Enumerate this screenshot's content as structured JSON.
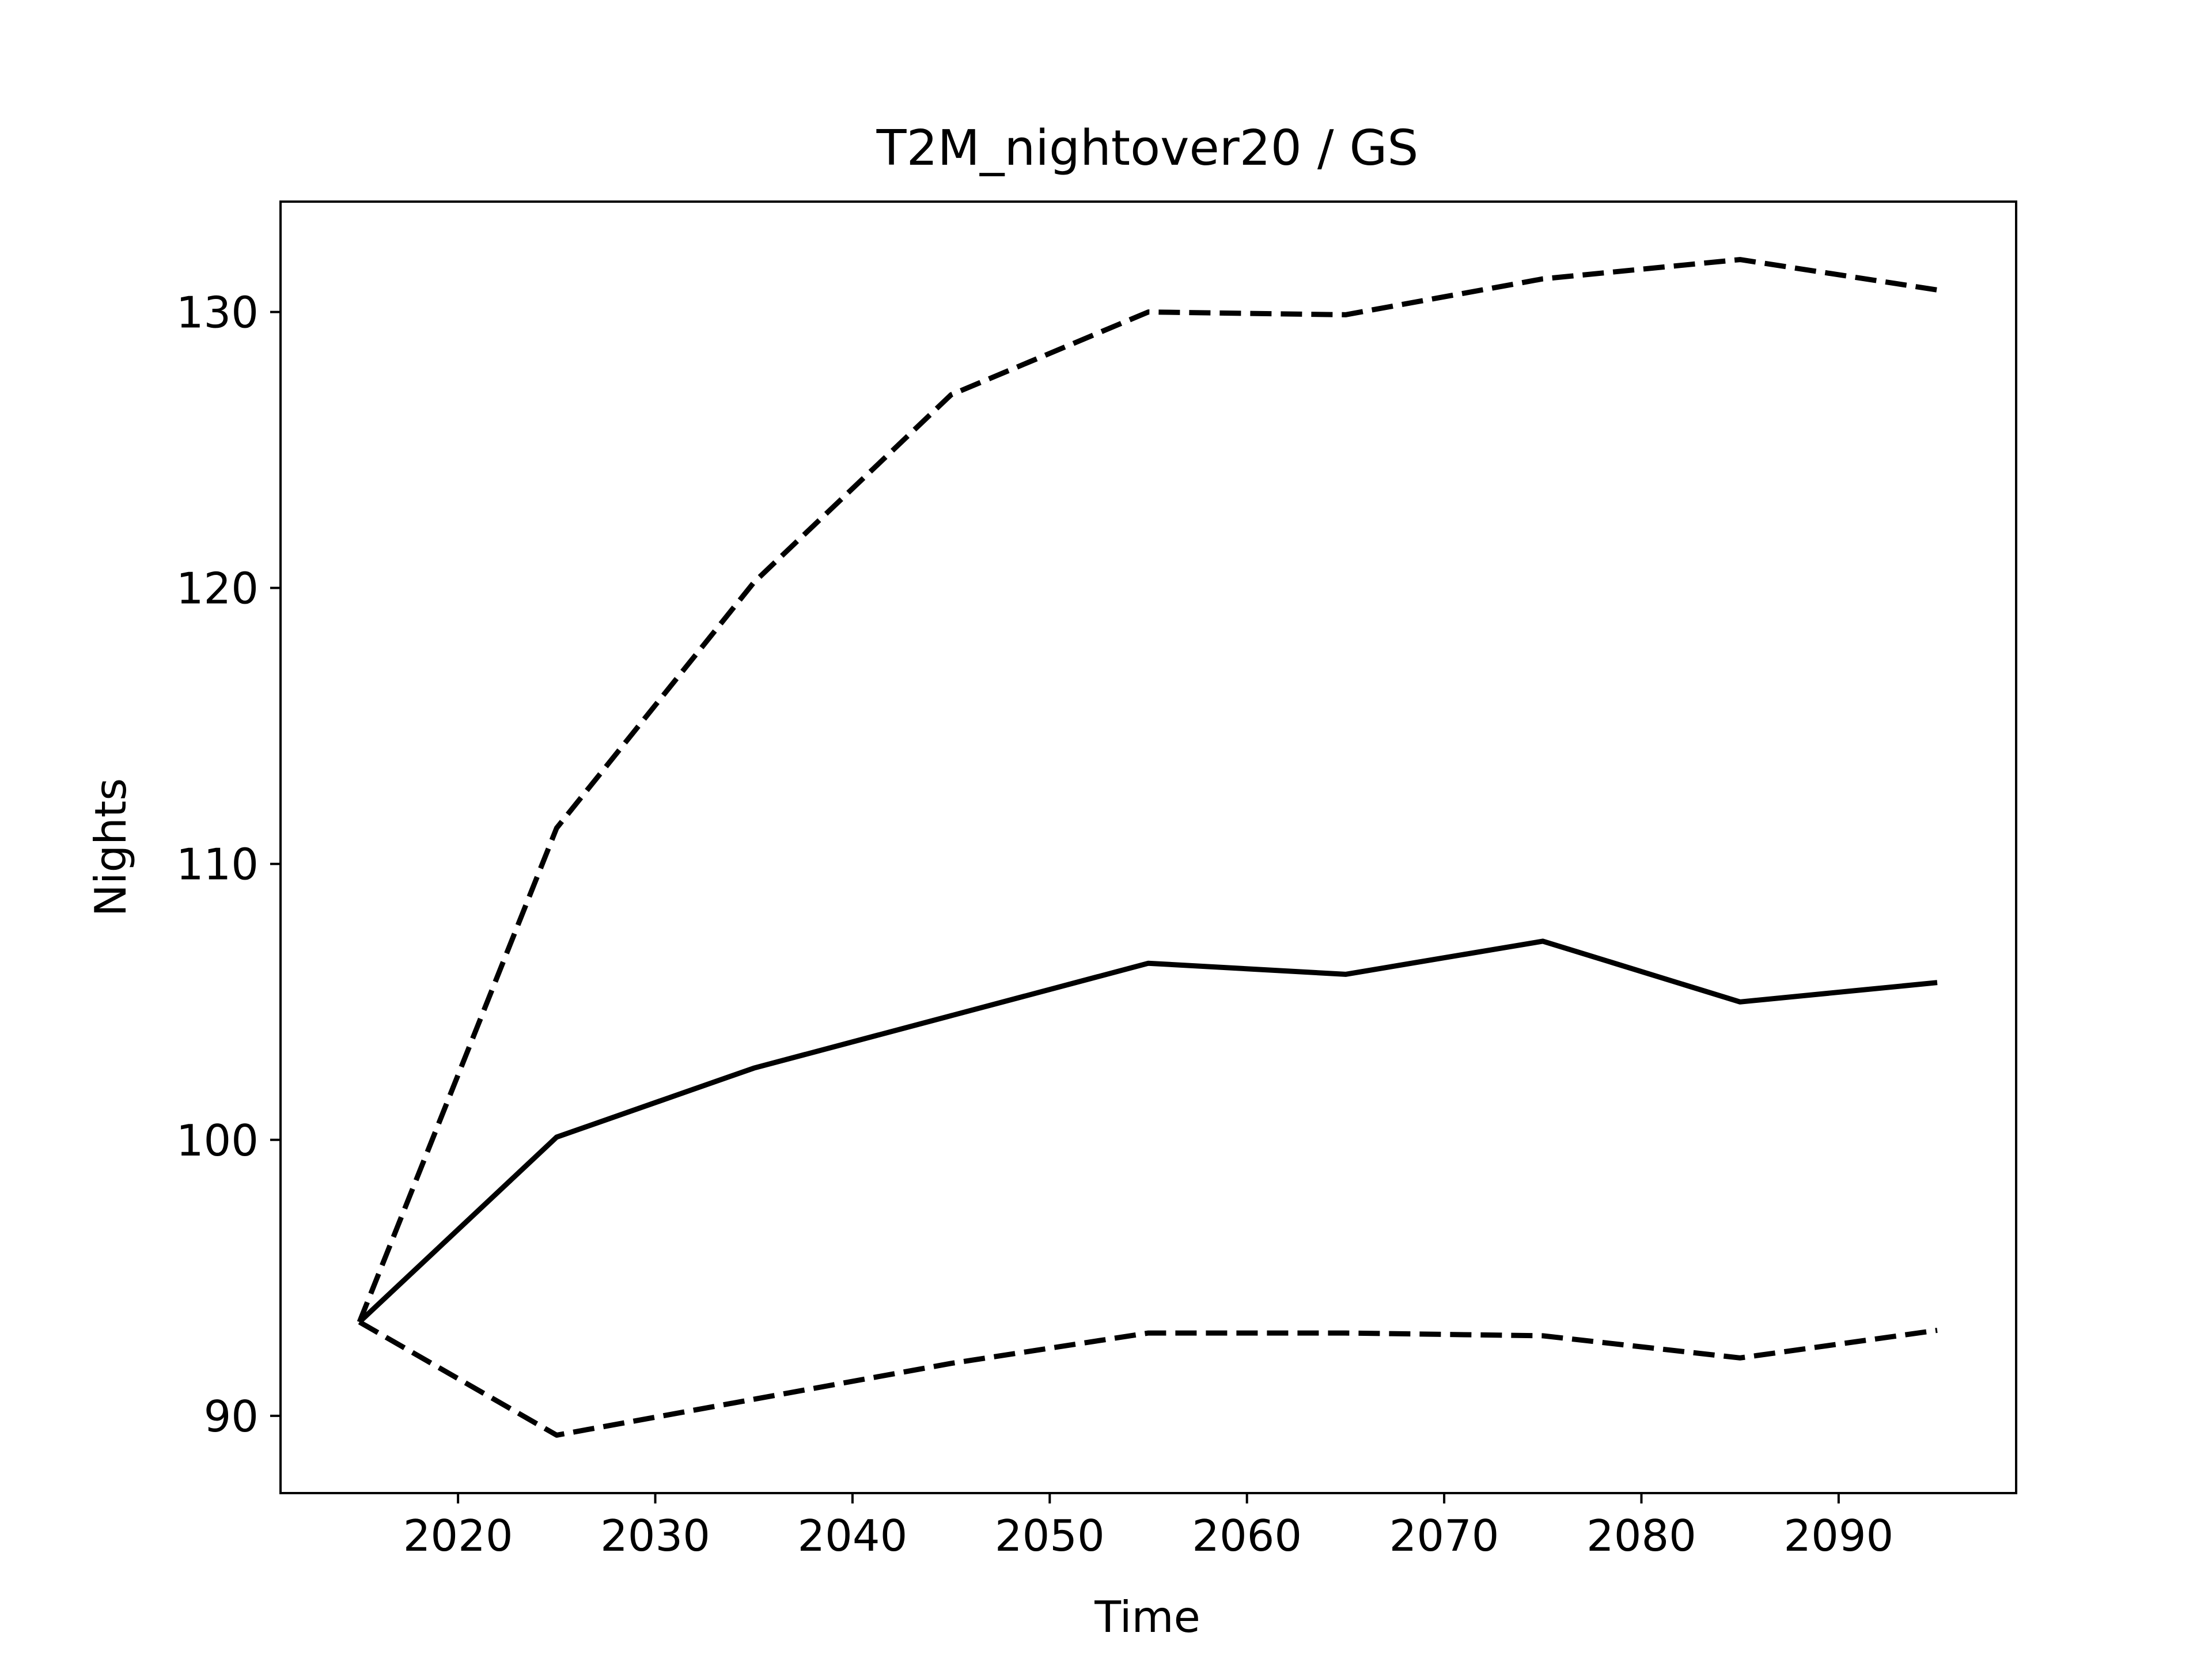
{
  "chart_data": {
    "type": "line",
    "title": "T2M_nightover20 / GS",
    "xlabel": "Time",
    "ylabel": "Nights",
    "xlim": [
      2011,
      2099
    ],
    "ylim": [
      87.2,
      134.0
    ],
    "xticks": [
      2020,
      2030,
      2040,
      2050,
      2060,
      2070,
      2080,
      2090
    ],
    "yticks": [
      90,
      100,
      110,
      120,
      130
    ],
    "grid": false,
    "x": [
      2015,
      2025,
      2035,
      2045,
      2055,
      2065,
      2075,
      2085,
      2095
    ],
    "series": [
      {
        "style": "solid",
        "color": "#000000",
        "values": [
          93.4,
          100.1,
          102.6,
          104.5,
          106.4,
          106.0,
          107.2,
          105.0,
          105.7
        ]
      },
      {
        "style": "dashed",
        "color": "#000000",
        "values": [
          93.4,
          111.3,
          120.2,
          127.0,
          130.0,
          129.9,
          131.2,
          131.9,
          130.8
        ]
      },
      {
        "style": "dashed",
        "color": "#000000",
        "values": [
          93.4,
          89.3,
          90.6,
          91.9,
          93.0,
          93.0,
          92.9,
          92.1,
          93.1
        ]
      }
    ]
  }
}
